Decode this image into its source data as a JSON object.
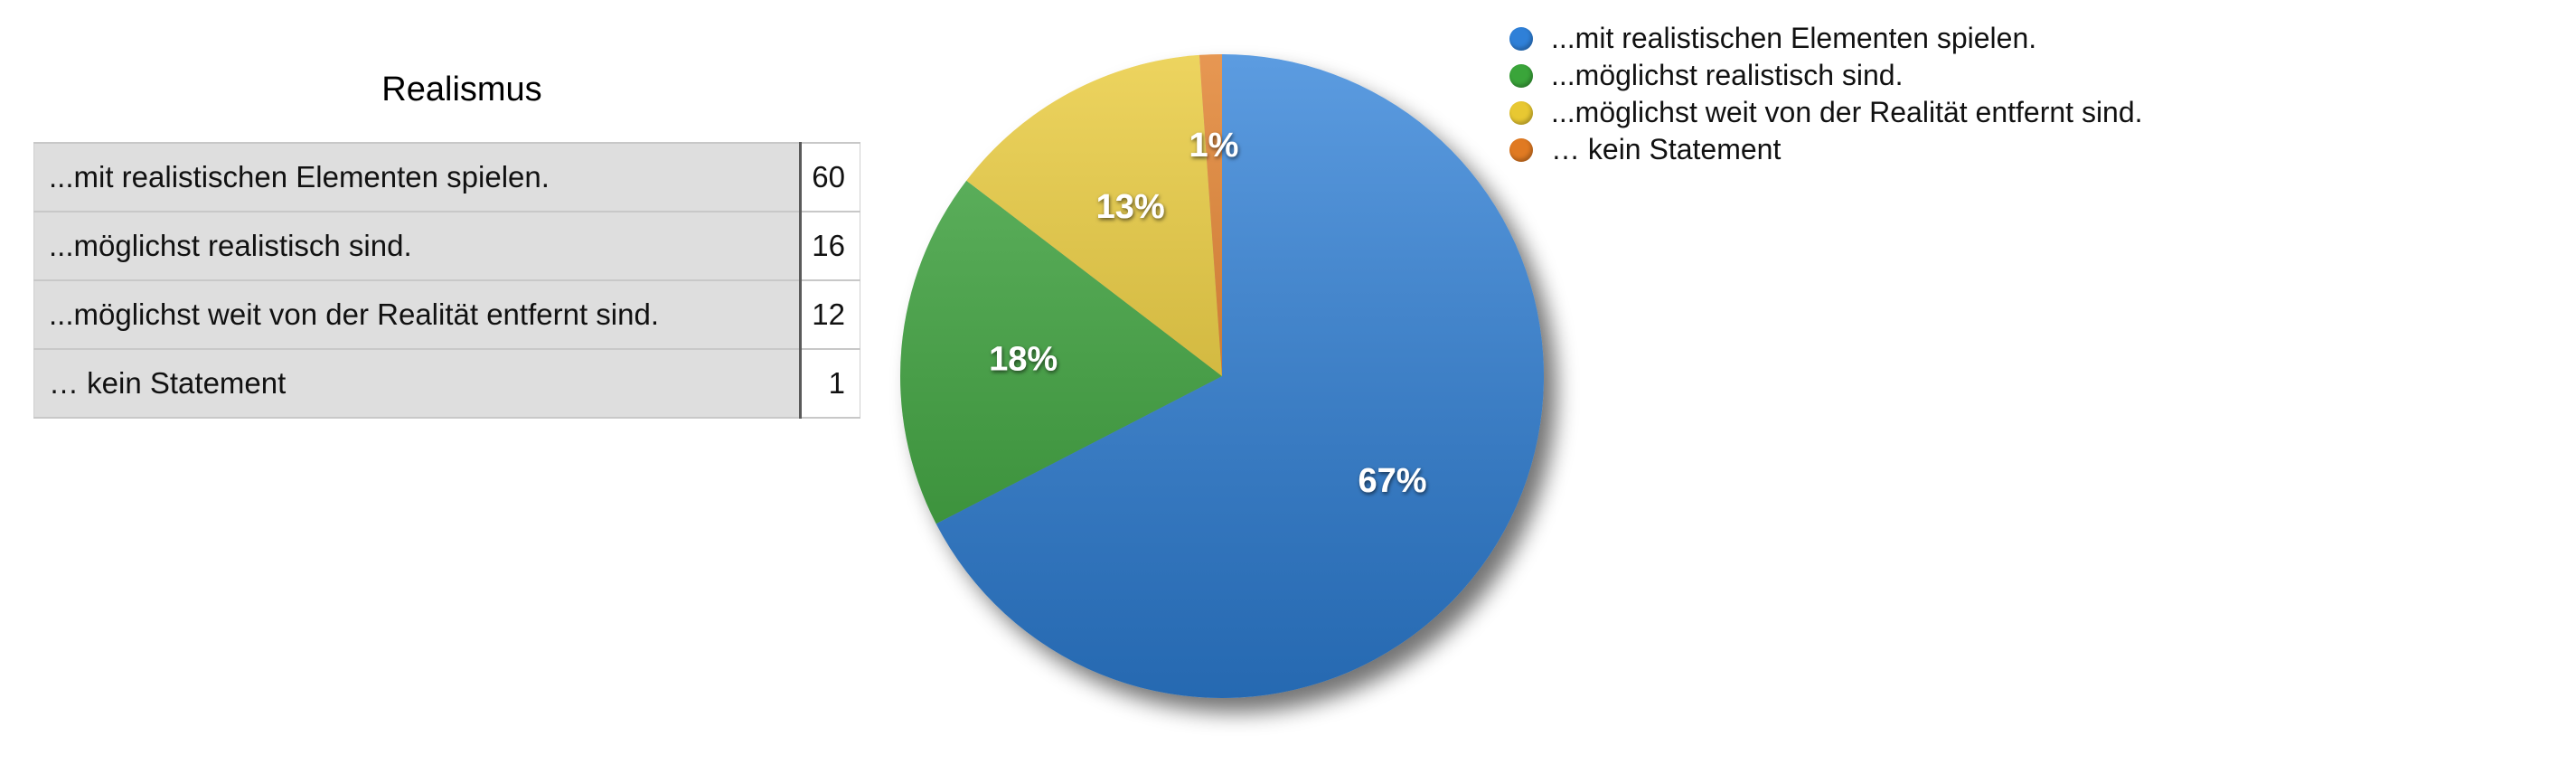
{
  "table": {
    "title": "Realismus",
    "rows": [
      {
        "label": "...mit realistischen Elementen spielen.",
        "value": "60"
      },
      {
        "label": "...möglichst realistisch sind.",
        "value": "16"
      },
      {
        "label": "...möglichst weit von der Realität entfernt sind.",
        "value": "12"
      },
      {
        "label": "… kein Statement",
        "value": "1"
      }
    ]
  },
  "chart_data": {
    "type": "pie",
    "title": "",
    "categories": [
      "...mit realistischen Elementen spielen.",
      "...möglichst realistisch sind.",
      "...möglichst weit von der Realität entfernt sind.",
      "… kein Statement"
    ],
    "values": [
      60,
      16,
      12,
      1
    ],
    "data_labels": [
      "67%",
      "18%",
      "13%",
      "1%"
    ],
    "colors": [
      "#2f80d8",
      "#3aa53a",
      "#e8c832",
      "#e07a22"
    ],
    "start_angle": "12 o'clock",
    "direction": "clockwise",
    "legend_position": "top-right"
  }
}
